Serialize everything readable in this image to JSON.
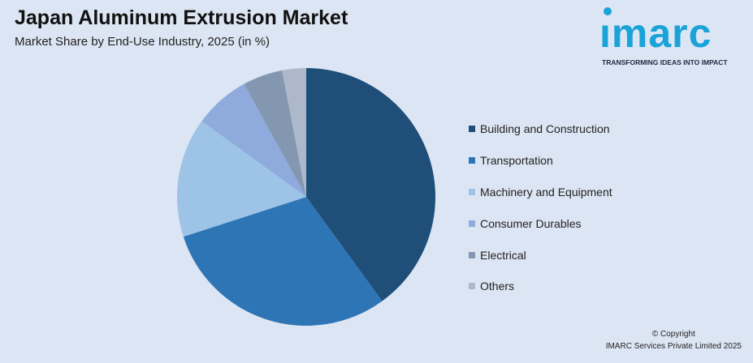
{
  "header": {
    "title": "Japan Aluminum Extrusion Market",
    "subtitle": "Market Share by End-Use Industry, 2025 (in %)"
  },
  "logo": {
    "word": "ımarc",
    "tagline": "TRANSFORMING IDEAS INTO IMPACT",
    "color": "#1aa3d9"
  },
  "chart_data": {
    "type": "pie",
    "title": "Japan Aluminum Extrusion Market",
    "subtitle": "Market Share by End-Use Industry, 2025 (in %)",
    "legend_position": "right",
    "categories": [
      "Building and Construction",
      "Transportation",
      "Machinery and Equipment",
      "Consumer Durables",
      "Electrical",
      "Others"
    ],
    "values": [
      40,
      30,
      15,
      7,
      5,
      3
    ],
    "colors": [
      "#1f4e79",
      "#2e75b6",
      "#9dc3e6",
      "#8faadc",
      "#8497b0",
      "#adb9ca"
    ]
  },
  "footer": {
    "copyright_line1": "© Copyright",
    "copyright_line2": "IMARC Services Private Limited 2025"
  }
}
